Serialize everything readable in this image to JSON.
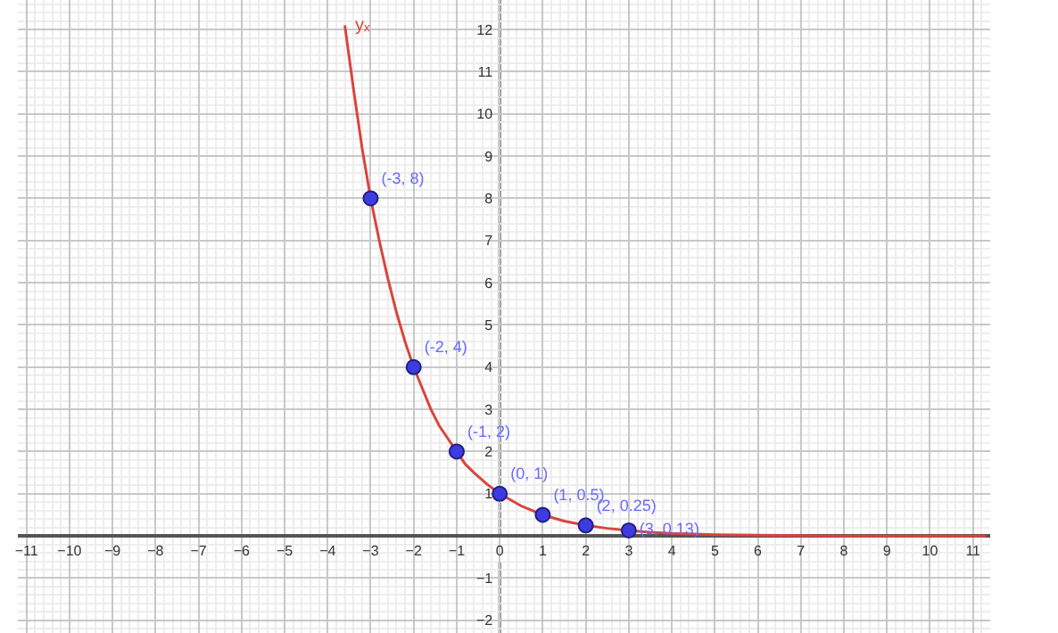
{
  "chart_data": {
    "type": "line",
    "xlim": [
      -11.2,
      11.4
    ],
    "ylim": [
      -2.3,
      12.7
    ],
    "xticks": [
      -11,
      -10,
      -9,
      -8,
      -7,
      -6,
      -5,
      -4,
      -3,
      -2,
      -1,
      0,
      1,
      2,
      3,
      4,
      5,
      6,
      7,
      8,
      9,
      10,
      11
    ],
    "yticks": [
      -2,
      -1,
      1,
      2,
      3,
      4,
      5,
      6,
      7,
      8,
      9,
      10,
      11,
      12
    ],
    "grid": true,
    "legend": false,
    "annotations": [
      "yₓ"
    ],
    "series": [
      {
        "color": "#d8453c",
        "marker": "none",
        "line_style": "solid",
        "x": [
          -3.6,
          -3.4,
          -3.2,
          -3,
          -2.8,
          -2.6,
          -2.4,
          -2.2,
          -2,
          -1.8,
          -1.6,
          -1.4,
          -1.2,
          -1,
          -0.8,
          -0.6,
          -0.3,
          0,
          0.5,
          1,
          1.5,
          2,
          2.5,
          3,
          3.5,
          4,
          5,
          6,
          7,
          8,
          11.3
        ],
        "values": [
          12.1,
          10.6,
          9.2,
          8,
          7,
          6.1,
          5.3,
          4.6,
          4,
          3.5,
          3,
          2.6,
          2.3,
          2,
          1.7,
          1.5,
          1.23,
          1,
          0.71,
          0.5,
          0.35,
          0.25,
          0.18,
          0.13,
          0.09,
          0.06,
          0.03,
          0.02,
          0.01,
          0,
          0
        ]
      },
      {
        "type": "scatter",
        "color": "#3c3ce0",
        "marker": "circle",
        "x": [
          -3,
          -2,
          -1,
          0,
          1,
          2,
          3
        ],
        "values": [
          8,
          4,
          2,
          1,
          0.5,
          0.25,
          0.13
        ],
        "value_labels": [
          "(-3, 8)",
          "(-2, 4)",
          "(-1, 2)",
          "(0, 1)",
          "(1, 0.5)",
          "(2, 0.25)",
          "(3, 0.13)"
        ]
      }
    ]
  }
}
